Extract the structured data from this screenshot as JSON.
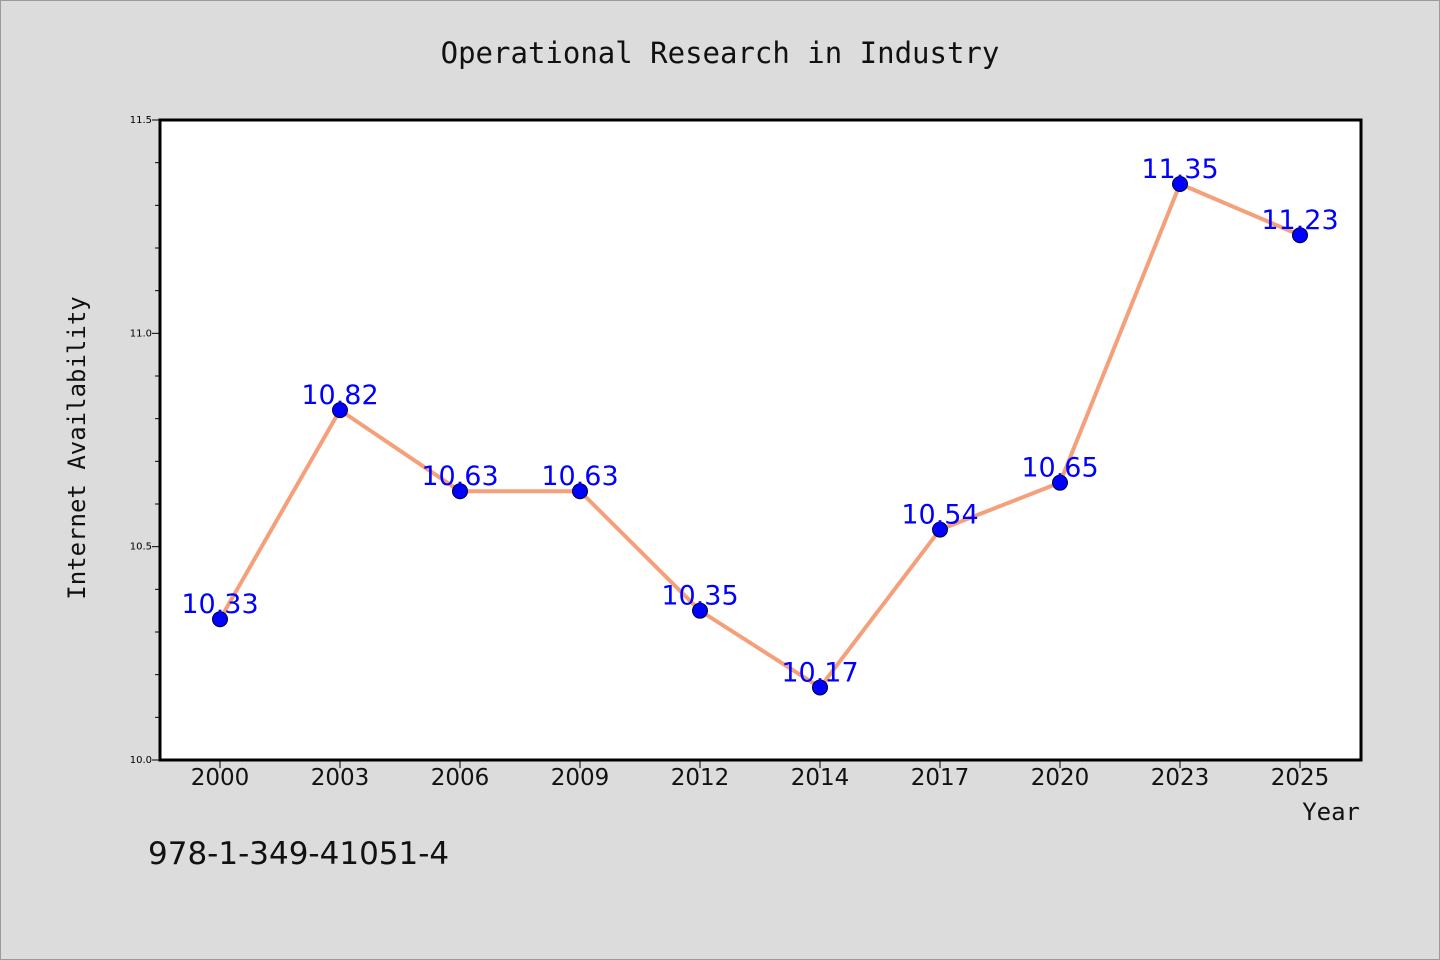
{
  "chart_data": {
    "type": "line",
    "title": "Operational Research in Industry",
    "xlabel": "Year",
    "ylabel": "Internet Availability",
    "categories": [
      "2000",
      "2003",
      "2006",
      "2009",
      "2012",
      "2014",
      "2017",
      "2020",
      "2023",
      "2025"
    ],
    "series": [
      {
        "values": [
          10.33,
          10.82,
          10.63,
          10.63,
          10.35,
          10.17,
          10.54,
          10.65,
          11.35,
          11.23
        ]
      }
    ],
    "data_labels": [
      "10.33",
      "10.82",
      "10.63",
      "10.63",
      "10.35",
      "10.17",
      "10.54",
      "10.65",
      "11.35",
      "11.23"
    ],
    "ylim": [
      10.0,
      11.5
    ],
    "yticks": [
      "10.0",
      "10.5",
      "11.0",
      "11.5"
    ],
    "grid": false,
    "colors": {
      "line": "#f4a07a",
      "marker": "#0000ff",
      "label": "#0000ff",
      "background": "#dcdcdc",
      "plot_area": "#ffffff"
    }
  },
  "annotation": "978-1-349-41051-4"
}
